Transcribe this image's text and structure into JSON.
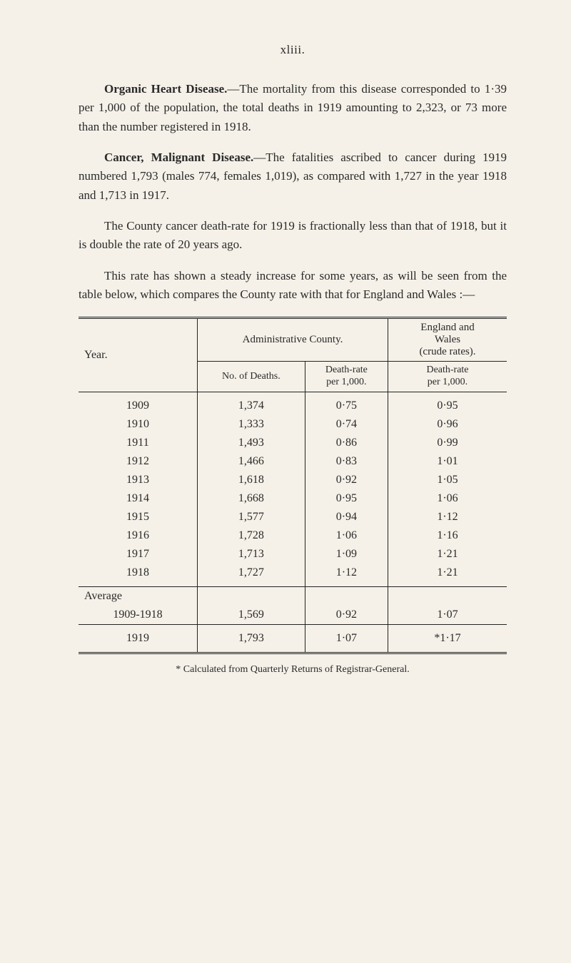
{
  "page_number": "xliii.",
  "paragraphs": {
    "p1_lead": "Organic Heart Disease.",
    "p1_body": "—The mortality from this disease corresponded to 1·39 per 1,000 of the population, the total deaths in 1919 amounting to 2,323, or 73 more than the number registered in 1918.",
    "p2_lead": "Cancer, Malignant Disease.",
    "p2_body": "—The fatalities ascribed to cancer during 1919 numbered 1,793 (males 774, females 1,019), as compared with 1,727 in the year 1918 and 1,713 in 1917.",
    "p3": "The County cancer death-rate for 1919 is fractionally less than that of 1918, but it is double the rate of 20 years ago.",
    "p4": "This rate has shown a steady increase for some years, as will be seen from the table below, which compares the County rate with that for England and Wales :—"
  },
  "table": {
    "headers": {
      "year": "Year.",
      "admin_county": "Administrative County.",
      "eng_wales_l1": "England and",
      "eng_wales_l2": "Wales",
      "eng_wales_l3": "(crude rates).",
      "no_deaths": "No. of Deaths.",
      "death_rate_l1": "Death-rate",
      "death_rate_l2": "per 1,000.",
      "ew_rate_l1": "Death-rate",
      "ew_rate_l2": "per 1,000."
    },
    "rows": [
      {
        "year": "1909",
        "deaths": "1,374",
        "rate": "0·75",
        "ew": "0·95"
      },
      {
        "year": "1910",
        "deaths": "1,333",
        "rate": "0·74",
        "ew": "0·96"
      },
      {
        "year": "1911",
        "deaths": "1,493",
        "rate": "0·86",
        "ew": "0·99"
      },
      {
        "year": "1912",
        "deaths": "1,466",
        "rate": "0·83",
        "ew": "1·01"
      },
      {
        "year": "1913",
        "deaths": "1,618",
        "rate": "0·92",
        "ew": "1·05"
      },
      {
        "year": "1914",
        "deaths": "1,668",
        "rate": "0·95",
        "ew": "1·06"
      },
      {
        "year": "1915",
        "deaths": "1,577",
        "rate": "0·94",
        "ew": "1·12"
      },
      {
        "year": "1916",
        "deaths": "1,728",
        "rate": "1·06",
        "ew": "1·16"
      },
      {
        "year": "1917",
        "deaths": "1,713",
        "rate": "1·09",
        "ew": "1·21"
      },
      {
        "year": "1918",
        "deaths": "1,727",
        "rate": "1·12",
        "ew": "1·21"
      }
    ],
    "average": {
      "label": "Average",
      "range": "1909-1918",
      "deaths": "1,569",
      "rate": "0·92",
      "ew": "1·07"
    },
    "final": {
      "year": "1919",
      "deaths": "1,793",
      "rate": "1·07",
      "ew": "*1·17"
    }
  },
  "footnote": "* Calculated from Quarterly Returns of Registrar-General.",
  "style": {
    "background": "#f5f1e8",
    "text_color": "#2a2a2a",
    "rule_color": "#222222",
    "body_fontsize": 17,
    "table_fontsize": 16,
    "footnote_fontsize": 14
  }
}
